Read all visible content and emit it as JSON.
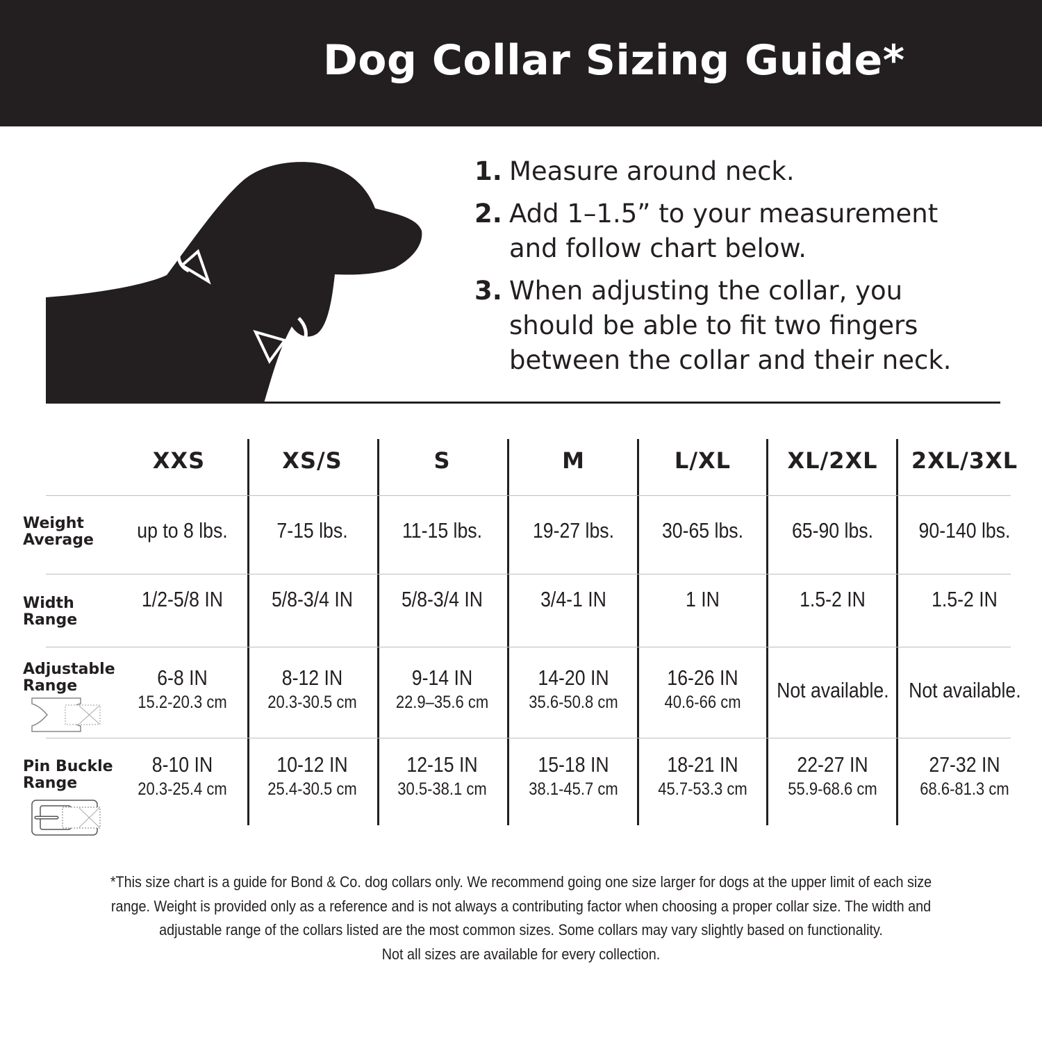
{
  "header": {
    "title": "Dog Collar Sizing Guide*"
  },
  "steps": [
    {
      "num": "1.",
      "text": "Measure around neck."
    },
    {
      "num": "2.",
      "text": "Add 1–1.5” to your measurement and follow chart below."
    },
    {
      "num": "3.",
      "text": "When adjusting the collar, you should be able to fit two fingers between the collar and their neck."
    }
  ],
  "illustration": {
    "icon": "dog-silhouette-icon",
    "arrows": "measure-arrows-icon"
  },
  "table": {
    "sizes": [
      "XXS",
      "XS/S",
      "S",
      "M",
      "L/XL",
      "XL/2XL",
      "2XL/3XL"
    ],
    "rows": [
      {
        "label": "Weight Average",
        "cells": [
          {
            "main": "up to 8 lbs."
          },
          {
            "main": "7-15 lbs."
          },
          {
            "main": "11-15 lbs."
          },
          {
            "main": "19-27 lbs."
          },
          {
            "main": "30-65 lbs."
          },
          {
            "main": "65-90 lbs."
          },
          {
            "main": "90-140 lbs."
          }
        ]
      },
      {
        "label": "Width Range",
        "cells": [
          {
            "main": "1/2-5/8 IN"
          },
          {
            "main": "5/8-3/4 IN"
          },
          {
            "main": "5/8-3/4 IN"
          },
          {
            "main": "3/4-1 IN"
          },
          {
            "main": "1 IN"
          },
          {
            "main": "1.5-2 IN"
          },
          {
            "main": "1.5-2 IN"
          }
        ]
      },
      {
        "label": "Adjustable Range",
        "icon": "side-release-buckle-icon",
        "cells": [
          {
            "main": "6-8 IN",
            "sub": "15.2-20.3 cm"
          },
          {
            "main": "8-12 IN",
            "sub": "20.3-30.5 cm"
          },
          {
            "main": "9-14 IN",
            "sub": "22.9–35.6 cm"
          },
          {
            "main": "14-20 IN",
            "sub": "35.6-50.8 cm"
          },
          {
            "main": "16-26 IN",
            "sub": "40.6-66 cm"
          },
          {
            "main": "Not available."
          },
          {
            "main": "Not available."
          }
        ]
      },
      {
        "label": "Pin Buckle Range",
        "icon": "pin-buckle-icon",
        "cells": [
          {
            "main": "8-10 IN",
            "sub": "20.3-25.4 cm"
          },
          {
            "main": "10-12 IN",
            "sub": "25.4-30.5 cm"
          },
          {
            "main": "12-15 IN",
            "sub": "30.5-38.1 cm"
          },
          {
            "main": "15-18 IN",
            "sub": "38.1-45.7 cm"
          },
          {
            "main": "18-21 IN",
            "sub": "45.7-53.3 cm"
          },
          {
            "main": "22-27 IN",
            "sub": "55.9-68.6 cm"
          },
          {
            "main": "27-32 IN",
            "sub": "68.6-81.3 cm"
          }
        ]
      }
    ]
  },
  "footer": {
    "lines": [
      "*This size chart is a guide for Bond & Co. dog collars only. We recommend going one size larger for dogs at the upper limit of each size",
      "range. Weight is provided only as a reference and is not always a contributing factor when choosing a proper collar size. The width and",
      "adjustable range of the collars listed are the most common sizes. Some collars may vary slightly based on functionality.",
      "Not all sizes are available for every collection."
    ]
  },
  "colors": {
    "dark": "#231f20",
    "background": "#ffffff",
    "divider": "#bdbdbd"
  }
}
